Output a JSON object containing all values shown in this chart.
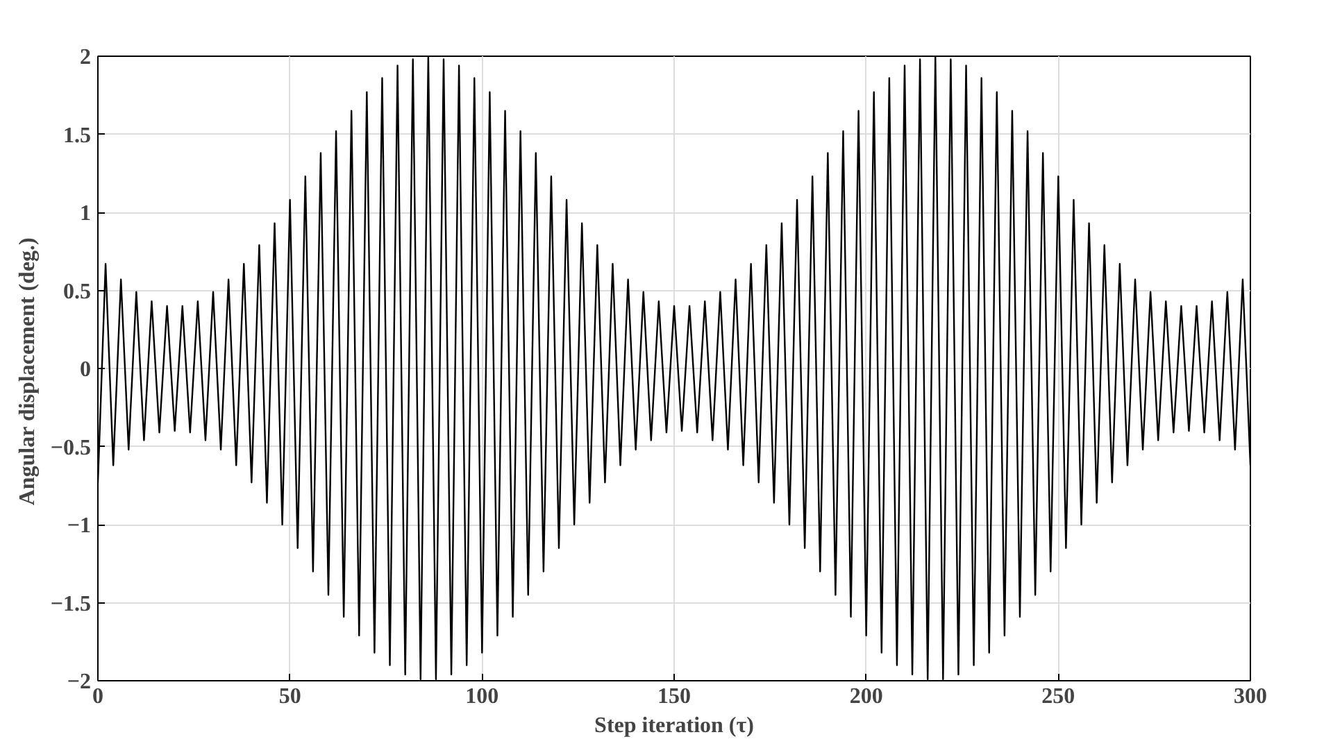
{
  "chart_data": {
    "type": "line",
    "xlabel": "Step iteration (τ)",
    "ylabel": "Angular displacement  (deg.)",
    "xlim": [
      0,
      300
    ],
    "ylim": [
      -2,
      2
    ],
    "xticks": [
      0,
      50,
      100,
      150,
      200,
      250,
      300
    ],
    "yticks": [
      -2,
      -1.5,
      -1,
      -0.5,
      0,
      0.5,
      1,
      1.5,
      2
    ],
    "grid": true,
    "series": [
      {
        "color": "#000000",
        "x": [
          0,
          2,
          4,
          6,
          8,
          10,
          12,
          14,
          16,
          18,
          20,
          22,
          24,
          26,
          28,
          30,
          32,
          34,
          36,
          38,
          40,
          42,
          44,
          46,
          48,
          50,
          52,
          54,
          56,
          58,
          60,
          62,
          64,
          66,
          68,
          70,
          72,
          74,
          76,
          78,
          80,
          82,
          84,
          86,
          88,
          90,
          92,
          94,
          96,
          98,
          100,
          102,
          104,
          106,
          108,
          110,
          112,
          114,
          116,
          118,
          120,
          122,
          124,
          126,
          128,
          130,
          132,
          134,
          136,
          138,
          140,
          142,
          144,
          146,
          148,
          150,
          152,
          154,
          156,
          158,
          160,
          162,
          164,
          166,
          168,
          170,
          172,
          174,
          176,
          178,
          180,
          182,
          184,
          186,
          188,
          190,
          192,
          194,
          196,
          198,
          200,
          202,
          204,
          206,
          208,
          210,
          212,
          214,
          216,
          218,
          220,
          222,
          224,
          226,
          228,
          230,
          232,
          234,
          236,
          238,
          240,
          242,
          244,
          246,
          248,
          250,
          252,
          254,
          256,
          258,
          260,
          262,
          264,
          266,
          268,
          270,
          272,
          274,
          276,
          278,
          280,
          282,
          284,
          286,
          288,
          290,
          292,
          294,
          296,
          298,
          300
        ],
        "values": [
          -0.73,
          0.67,
          -0.62,
          0.57,
          -0.52,
          0.49,
          -0.46,
          0.43,
          -0.41,
          0.4,
          -0.4,
          0.4,
          -0.41,
          0.43,
          -0.46,
          0.49,
          -0.52,
          0.57,
          -0.62,
          0.67,
          -0.73,
          0.79,
          -0.86,
          0.93,
          -1.0,
          1.08,
          -1.15,
          1.23,
          -1.3,
          1.38,
          -1.45,
          1.52,
          -1.59,
          1.65,
          -1.71,
          1.77,
          -1.82,
          1.86,
          -1.9,
          1.94,
          -1.96,
          1.98,
          -1.99,
          2.0,
          -1.99,
          1.98,
          -1.96,
          1.94,
          -1.9,
          1.86,
          -1.82,
          1.77,
          -1.71,
          1.65,
          -1.59,
          1.52,
          -1.45,
          1.38,
          -1.3,
          1.23,
          -1.15,
          1.08,
          -1.0,
          0.93,
          -0.86,
          0.79,
          -0.73,
          0.67,
          -0.62,
          0.57,
          -0.52,
          0.49,
          -0.46,
          0.43,
          -0.41,
          0.4,
          -0.4,
          0.4,
          -0.41,
          0.43,
          -0.46,
          0.49,
          -0.52,
          0.57,
          -0.62,
          0.67,
          -0.73,
          0.79,
          -0.86,
          0.93,
          -1.0,
          1.08,
          -1.15,
          1.23,
          -1.3,
          1.38,
          -1.45,
          1.52,
          -1.59,
          1.65,
          -1.71,
          1.77,
          -1.82,
          1.86,
          -1.9,
          1.94,
          -1.96,
          1.98,
          -1.99,
          2.0,
          -1.99,
          1.98,
          -1.96,
          1.94,
          -1.9,
          1.86,
          -1.82,
          1.77,
          -1.71,
          1.65,
          -1.59,
          1.52,
          -1.45,
          1.38,
          -1.3,
          1.23,
          -1.15,
          1.08,
          -1.0,
          0.93,
          -0.86,
          0.79,
          -0.73,
          0.67,
          -0.62,
          0.57,
          -0.52,
          0.49,
          -0.46,
          0.43,
          -0.41,
          0.4,
          -0.4,
          0.4,
          -0.41,
          0.43,
          -0.46,
          0.49,
          -0.52,
          0.57,
          -0.62
        ]
      }
    ]
  }
}
